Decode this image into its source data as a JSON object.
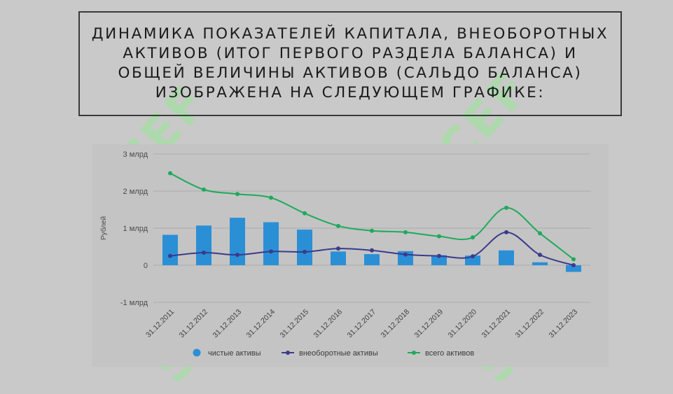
{
  "slide": {
    "title": "Динамика показателей капитала, внеоборотных активов (итог первого раздела баланса) и общей величины активов (сальдо баланса) изображена на следующем графике:",
    "watermark": "SCEF"
  },
  "chart_data": {
    "type": "bar",
    "categories": [
      "31.12.2011",
      "31.12.2012",
      "31.12.2013",
      "31.12.2014",
      "31.12.2015",
      "31.12.2016",
      "31.12.2017",
      "31.12.2018",
      "31.12.2019",
      "31.12.2020",
      "31.12.2021",
      "31.12.2022",
      "31.12.2023"
    ],
    "ylabel": "Рублей",
    "ylim": [
      -1,
      3
    ],
    "yticks": [
      3,
      2,
      1,
      0,
      -1
    ],
    "ytick_labels": [
      "3 млрд",
      "2 млрд",
      "1 млрд",
      "0",
      "-1 млрд"
    ],
    "grid": true,
    "legend_position": "bottom",
    "series": [
      {
        "name": "чистые активы",
        "type": "bar",
        "color": "#2b8fd6",
        "values": [
          0.82,
          1.07,
          1.28,
          1.16,
          0.96,
          0.37,
          0.3,
          0.38,
          0.27,
          0.26,
          0.4,
          0.08,
          -0.18
        ]
      },
      {
        "name": "внеоборотные активы",
        "type": "line",
        "color": "#3b3a8c",
        "values": [
          0.25,
          0.34,
          0.28,
          0.37,
          0.36,
          0.45,
          0.4,
          0.29,
          0.25,
          0.24,
          0.89,
          0.28,
          0.0
        ]
      },
      {
        "name": "всего активов",
        "type": "line",
        "color": "#1eaa5c",
        "values": [
          2.48,
          2.04,
          1.92,
          1.82,
          1.4,
          1.06,
          0.93,
          0.89,
          0.78,
          0.75,
          1.55,
          0.86,
          0.16
        ]
      }
    ]
  }
}
